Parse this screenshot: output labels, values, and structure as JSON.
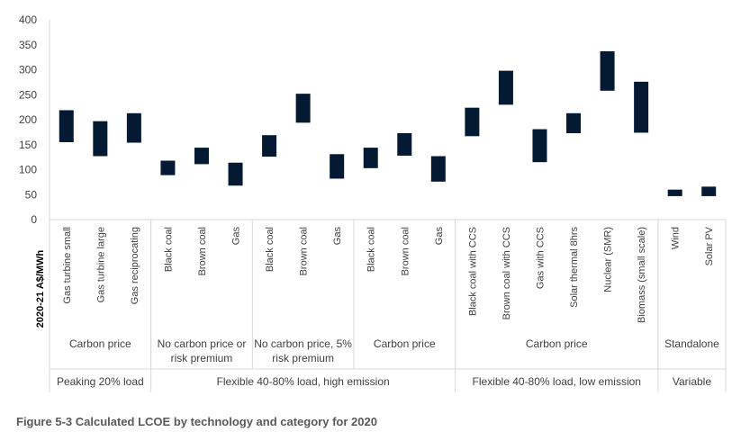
{
  "caption": "Figure 5-3 Calculated LCOE by technology and category for 2020",
  "colors": {
    "bar": "#041a33",
    "axis": "#d9d9d9",
    "text": "#404040"
  },
  "chart_data": {
    "type": "bar",
    "subtype": "floating-range",
    "ylabel": "2020-21 A$/MWh",
    "ylim": [
      0,
      400
    ],
    "yticks": [
      0,
      50,
      100,
      150,
      200,
      250,
      300,
      350,
      400
    ],
    "grid": false,
    "categories": [
      "Gas turbine small",
      "Gas turbine large",
      "Gas reciprocating",
      "Black coal",
      "Brown coal",
      "Gas",
      "Black coal",
      "Brown coal",
      "Gas",
      "Black coal",
      "Brown coal",
      "Gas",
      "Black coal with CCS",
      "Brown coal with CCS",
      "Gas with CCS",
      "Solar thermal 8hrs",
      "Nuclear (SMR)",
      "Biomass (small scale)",
      "Wind",
      "Solar PV"
    ],
    "ranges": [
      [
        155,
        219
      ],
      [
        127,
        197
      ],
      [
        154,
        213
      ],
      [
        89,
        118
      ],
      [
        111,
        144
      ],
      [
        68,
        114
      ],
      [
        126,
        169
      ],
      [
        194,
        252
      ],
      [
        82,
        131
      ],
      [
        103,
        144
      ],
      [
        128,
        173
      ],
      [
        76,
        127
      ],
      [
        167,
        224
      ],
      [
        230,
        298
      ],
      [
        115,
        181
      ],
      [
        173,
        213
      ],
      [
        258,
        337
      ],
      [
        174,
        276
      ],
      [
        47,
        60
      ],
      [
        47,
        66
      ]
    ],
    "subgroups": [
      {
        "label": "Carbon price",
        "span": 3
      },
      {
        "label": "No carbon price or risk premium",
        "lines": [
          "No carbon price or",
          "risk premium"
        ],
        "span": 3
      },
      {
        "label": "No carbon price, 5% risk premium",
        "lines": [
          "No carbon price, 5%",
          "risk premium"
        ],
        "span": 3
      },
      {
        "label": "Carbon price",
        "span": 3
      },
      {
        "label": "Carbon price",
        "span": 6
      },
      {
        "label": "Standalone",
        "span": 2
      }
    ],
    "groups": [
      {
        "label": "Peaking 20% load",
        "span": 3
      },
      {
        "label": "Flexible 40-80% load, high emission",
        "span": 9
      },
      {
        "label": "Flexible 40-80% load, low emission",
        "span": 6
      },
      {
        "label": "Variable",
        "span": 2
      }
    ]
  }
}
